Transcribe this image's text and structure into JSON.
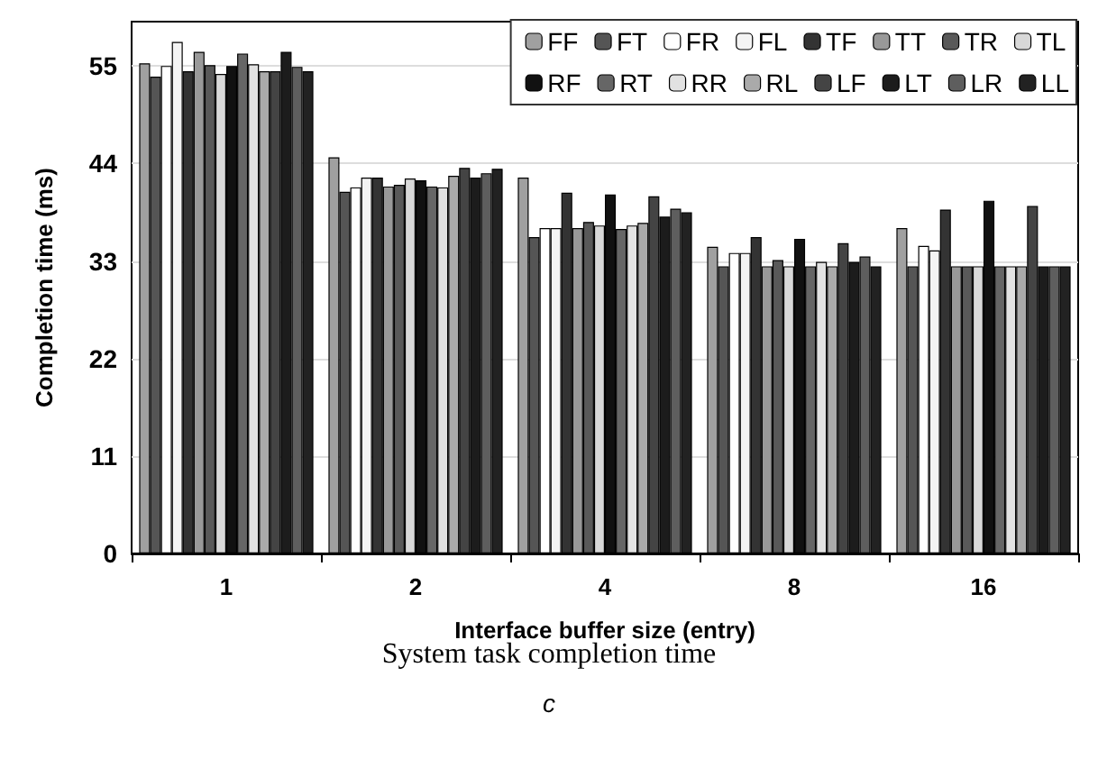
{
  "chart_data": {
    "type": "bar",
    "title": "System task completion time",
    "subtitle": "c",
    "xlabel": "Interface buffer size (entry)",
    "ylabel": "Completion time (ms)",
    "categories": [
      "1",
      "2",
      "4",
      "8",
      "16"
    ],
    "ylim": [
      0,
      60
    ],
    "yticks": [
      0,
      11,
      22,
      33,
      44,
      55
    ],
    "grid": "y",
    "legend": "top right",
    "series": [
      {
        "name": "FF",
        "color": "#a0a0a0",
        "values": [
          55.3,
          44.7,
          42.4,
          34.6,
          36.7
        ]
      },
      {
        "name": "FT",
        "color": "#555555",
        "values": [
          53.8,
          40.8,
          35.7,
          32.4,
          32.4
        ]
      },
      {
        "name": "FR",
        "color": "#ffffff",
        "values": [
          55.0,
          41.3,
          36.7,
          33.9,
          34.7
        ]
      },
      {
        "name": "FL",
        "color": "#f4f4f4",
        "values": [
          57.7,
          42.4,
          36.7,
          33.9,
          34.2
        ]
      },
      {
        "name": "TF",
        "color": "#333333",
        "values": [
          54.4,
          42.4,
          40.7,
          35.7,
          38.8
        ]
      },
      {
        "name": "TT",
        "color": "#999999",
        "values": [
          56.6,
          41.4,
          36.7,
          32.4,
          32.4
        ]
      },
      {
        "name": "TR",
        "color": "#595959",
        "values": [
          55.1,
          41.6,
          37.4,
          33.1,
          32.4
        ]
      },
      {
        "name": "TL",
        "color": "#d8d8d8",
        "values": [
          54.1,
          42.3,
          37.0,
          32.4,
          32.4
        ]
      },
      {
        "name": "RF",
        "color": "#111111",
        "values": [
          55.0,
          42.1,
          40.5,
          35.5,
          39.8
        ]
      },
      {
        "name": "RT",
        "color": "#666666",
        "values": [
          56.4,
          41.4,
          36.6,
          32.4,
          32.4
        ]
      },
      {
        "name": "RR",
        "color": "#e2e2e2",
        "values": [
          55.2,
          41.3,
          37.0,
          32.9,
          32.4
        ]
      },
      {
        "name": "RL",
        "color": "#aaaaaa",
        "values": [
          54.4,
          42.6,
          37.3,
          32.4,
          32.4
        ]
      },
      {
        "name": "LF",
        "color": "#444444",
        "values": [
          54.4,
          43.5,
          40.3,
          35.0,
          39.2
        ]
      },
      {
        "name": "LT",
        "color": "#1c1c1c",
        "values": [
          56.6,
          42.4,
          38.0,
          32.9,
          32.4
        ]
      },
      {
        "name": "LR",
        "color": "#5e5e5e",
        "values": [
          54.9,
          42.9,
          38.9,
          33.5,
          32.4
        ]
      },
      {
        "name": "LL",
        "color": "#222222",
        "values": [
          54.4,
          43.4,
          38.5,
          32.4,
          32.4
        ]
      }
    ]
  }
}
